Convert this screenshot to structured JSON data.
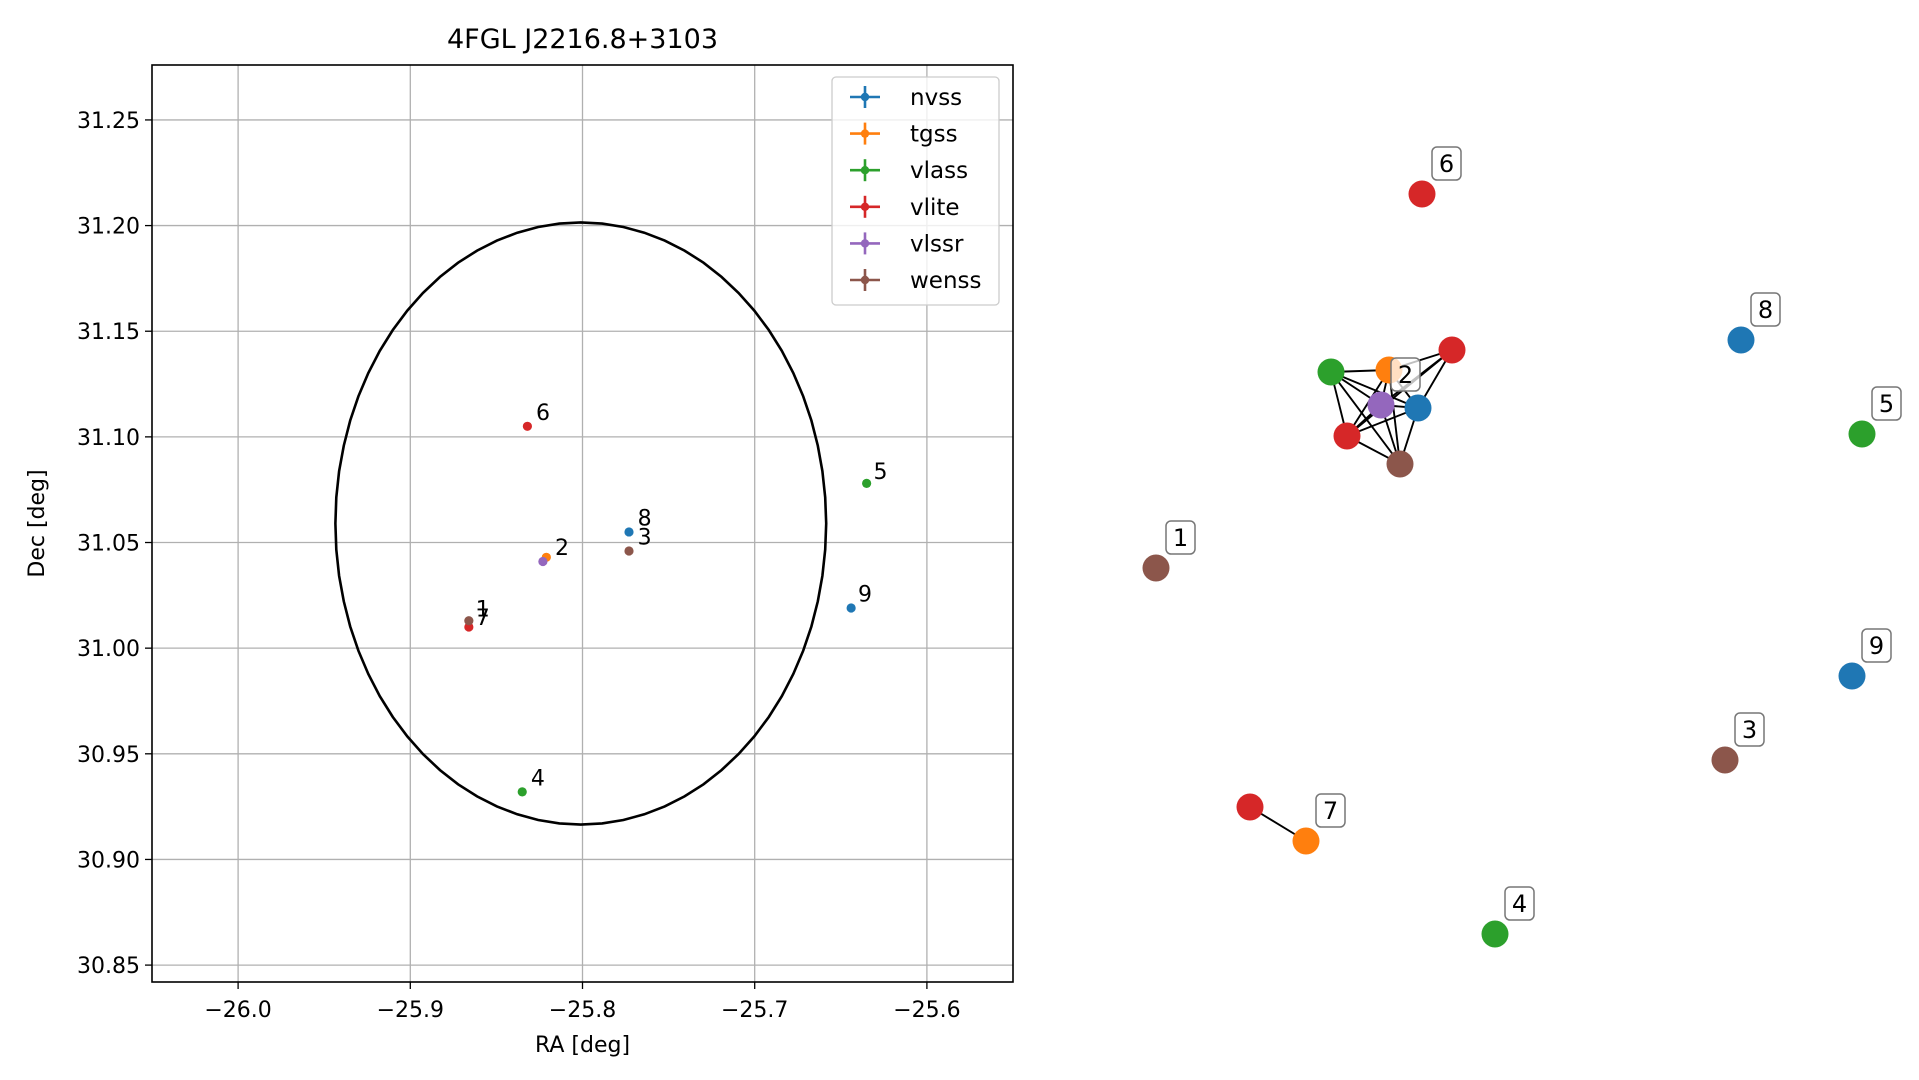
{
  "chart_data": [
    {
      "type": "scatter",
      "title": "4FGL J2216.8+3103",
      "xlabel": "RA [deg]",
      "ylabel": "Dec [deg]",
      "xlim": [
        -26.05,
        -25.55
      ],
      "ylim": [
        30.842,
        31.276
      ],
      "xticks": [
        -26.0,
        -25.9,
        -25.8,
        -25.7,
        -25.6
      ],
      "xtick_labels": [
        "−26.0",
        "−25.9",
        "−25.8",
        "−25.7",
        "−25.6"
      ],
      "yticks": [
        30.85,
        30.9,
        30.95,
        31.0,
        31.05,
        31.1,
        31.15,
        31.2,
        31.25
      ],
      "ytick_labels": [
        "30.85",
        "30.90",
        "30.95",
        "31.00",
        "31.05",
        "31.10",
        "31.15",
        "31.20",
        "31.25"
      ],
      "grid": true,
      "legend_position": "top-right",
      "circle": {
        "center": [
          -25.801,
          31.059
        ],
        "radius_deg": 0.1425
      },
      "series": [
        {
          "name": "nvss",
          "color": "#1f77b4",
          "points": [
            {
              "x": -25.773,
              "y": 31.055
            },
            {
              "x": -25.644,
              "y": 31.019
            }
          ]
        },
        {
          "name": "tgss",
          "color": "#ff7f0e",
          "points": [
            {
              "x": -25.821,
              "y": 31.043
            }
          ]
        },
        {
          "name": "vlass",
          "color": "#2ca02c",
          "points": [
            {
              "x": -25.635,
              "y": 31.078
            },
            {
              "x": -25.835,
              "y": 30.932
            }
          ]
        },
        {
          "name": "vlite",
          "color": "#d62728",
          "points": [
            {
              "x": -25.832,
              "y": 31.105
            },
            {
              "x": -25.866,
              "y": 31.01
            }
          ]
        },
        {
          "name": "vlssr",
          "color": "#9467bd",
          "points": [
            {
              "x": -25.823,
              "y": 31.041
            }
          ]
        },
        {
          "name": "wenss",
          "color": "#8c564b",
          "points": [
            {
              "x": -25.866,
              "y": 31.013
            },
            {
              "x": -25.773,
              "y": 31.046
            }
          ]
        }
      ],
      "annotations": [
        {
          "text": "6",
          "x": -25.827,
          "y": 31.108
        },
        {
          "text": "5",
          "x": -25.631,
          "y": 31.08
        },
        {
          "text": "8",
          "x": -25.768,
          "y": 31.058
        },
        {
          "text": "3",
          "x": -25.768,
          "y": 31.049
        },
        {
          "text": "2",
          "x": -25.816,
          "y": 31.044
        },
        {
          "text": "9",
          "x": -25.64,
          "y": 31.022
        },
        {
          "text": "1",
          "x": -25.862,
          "y": 31.015
        },
        {
          "text": "7",
          "x": -25.862,
          "y": 31.011
        },
        {
          "text": "4",
          "x": -25.83,
          "y": 30.935
        }
      ]
    },
    {
      "type": "network",
      "nodes": [
        {
          "id": "n1",
          "color": "#8c564b",
          "label": "1"
        },
        {
          "id": "n2",
          "color": "#9467bd",
          "label": "2"
        },
        {
          "id": "n3",
          "color": "#8c564b",
          "label": "3"
        },
        {
          "id": "n4",
          "color": "#2ca02c",
          "label": "4"
        },
        {
          "id": "n5",
          "color": "#2ca02c",
          "label": "5"
        },
        {
          "id": "n6",
          "color": "#d62728",
          "label": "6"
        },
        {
          "id": "n7",
          "color": "#ff7f0e",
          "label": "7"
        },
        {
          "id": "n8",
          "color": "#1f77b4",
          "label": "8"
        },
        {
          "id": "n9",
          "color": "#1f77b4",
          "label": "9"
        },
        {
          "id": "cg",
          "color": "#2ca02c",
          "label": ""
        },
        {
          "id": "co",
          "color": "#ff7f0e",
          "label": ""
        },
        {
          "id": "cr1",
          "color": "#d62728",
          "label": ""
        },
        {
          "id": "cb",
          "color": "#1f77b4",
          "label": ""
        },
        {
          "id": "cr2",
          "color": "#d62728",
          "label": ""
        },
        {
          "id": "cbr",
          "color": "#8c564b",
          "label": ""
        },
        {
          "id": "r7",
          "color": "#d62728",
          "label": ""
        }
      ],
      "edges": [
        [
          "cg",
          "co"
        ],
        [
          "cg",
          "n2"
        ],
        [
          "cg",
          "cr2"
        ],
        [
          "cg",
          "cb"
        ],
        [
          "cg",
          "cbr"
        ],
        [
          "co",
          "cr1"
        ],
        [
          "co",
          "n2"
        ],
        [
          "co",
          "cb"
        ],
        [
          "co",
          "cr2"
        ],
        [
          "co",
          "cbr"
        ],
        [
          "cr1",
          "n2"
        ],
        [
          "cr1",
          "cb"
        ],
        [
          "cr1",
          "cr2"
        ],
        [
          "n2",
          "cb"
        ],
        [
          "n2",
          "cr2"
        ],
        [
          "n2",
          "cbr"
        ],
        [
          "cb",
          "cr2"
        ],
        [
          "cb",
          "cbr"
        ],
        [
          "cr2",
          "cbr"
        ],
        [
          "r7",
          "n7"
        ]
      ]
    }
  ]
}
